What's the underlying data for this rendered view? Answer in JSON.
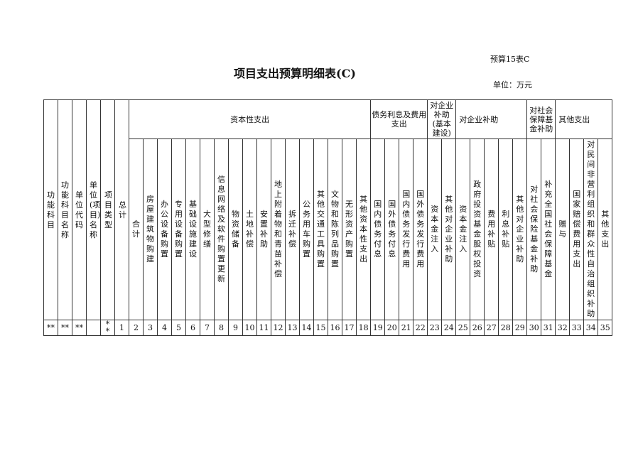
{
  "header": {
    "form_no": "预算15表C",
    "title": "项目支出预算明细表(C)",
    "unit": "单位：万元"
  },
  "table": {
    "left_headers": [
      "功能科目",
      "功能科目名称",
      "单位代码",
      "单位(项目)名称",
      "项目类型",
      "总计"
    ],
    "groups": [
      {
        "label": "资本性支出",
        "span": 17,
        "align": "center"
      },
      {
        "label": "债务利息及费用支出",
        "span": 4,
        "align": "center"
      },
      {
        "label": "对企业补助(基本建设)",
        "span": 2,
        "align": "center"
      },
      {
        "label": "对企业补助",
        "span": 5,
        "align": "left"
      },
      {
        "label": "对社会保障基金补助",
        "span": 2,
        "align": "center"
      },
      {
        "label": "其他支出",
        "span": 4,
        "align": "left"
      }
    ],
    "columns": [
      "合计",
      "房屋建筑物购建",
      "办公设备购置",
      "专用设备购置",
      "基础设施建设",
      "大型修缮",
      "信息网络及软件购置更新",
      "物资储备",
      "土地补偿",
      "安置补助",
      "地上附着物和青苗补偿",
      "拆迁补偿",
      "公务用车购置",
      "其他交通工具购置",
      "文物和陈列品购置",
      "无形资产购置",
      "其他资本性支出",
      "国内债务付息",
      "国外债务付息",
      "国内债务发行费用",
      "国外债务发行费用",
      "资本金注入",
      "其他对企业补助",
      "资本金注入",
      "政府投资基金股权投资",
      "费用补贴",
      "利息补贴",
      "其他对企业补助",
      "对社会保险基金补助",
      "补充全国社会保障基金",
      "赠与",
      "国家赔偿费用支出",
      "对民间非营利组织和群众性自治组织补助",
      "其他支出"
    ],
    "number_row": [
      "**",
      "**",
      "**",
      "",
      "**",
      "1",
      "2",
      "3",
      "4",
      "5",
      "6",
      "7",
      "8",
      "9",
      "10",
      "11",
      "12",
      "13",
      "14",
      "15",
      "16",
      "17",
      "18",
      "19",
      "20",
      "21",
      "22",
      "23",
      "24",
      "25",
      "26",
      "27",
      "28",
      "29",
      "30",
      "31",
      "32",
      "33",
      "34",
      "35"
    ]
  }
}
